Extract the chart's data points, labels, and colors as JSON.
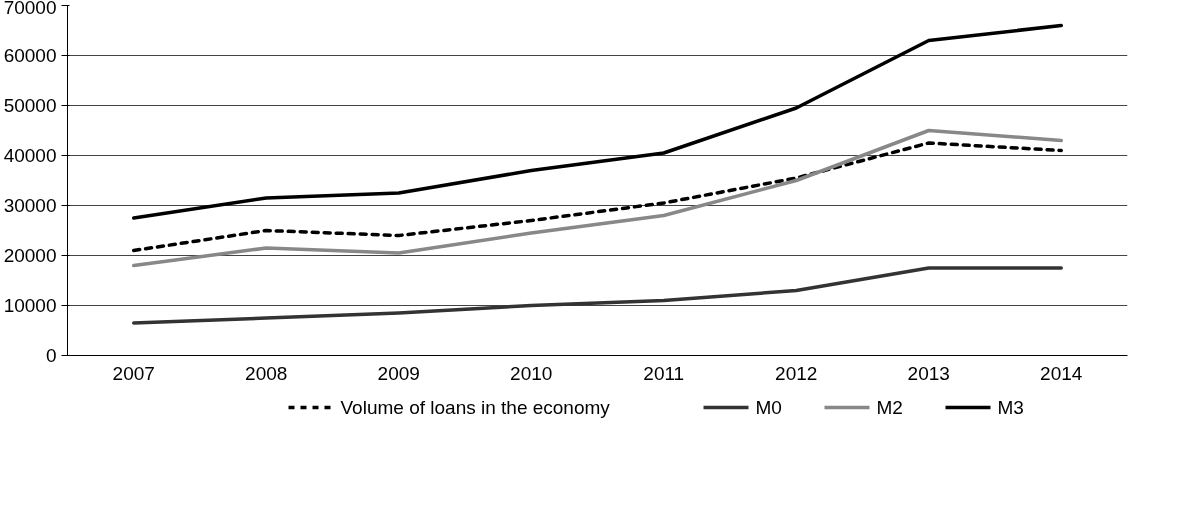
{
  "chart_data": {
    "type": "line",
    "categories": [
      "2007",
      "2008",
      "2009",
      "2010",
      "2011",
      "2012",
      "2013",
      "2014"
    ],
    "series": [
      {
        "name": "Volume of loans in the economy",
        "color": "#000000",
        "line_style": "dashed",
        "values": [
          21000,
          25000,
          24000,
          27000,
          30500,
          35500,
          42500,
          41000
        ]
      },
      {
        "name": "M0",
        "color": "#333333",
        "line_style": "solid",
        "values": [
          6500,
          7500,
          8500,
          10000,
          11000,
          13000,
          17500,
          17500
        ]
      },
      {
        "name": "M2",
        "color": "#888888",
        "line_style": "solid",
        "values": [
          18000,
          21500,
          20500,
          24500,
          28000,
          35000,
          45000,
          43000
        ]
      },
      {
        "name": "M3",
        "color": "#000000",
        "line_style": "solid",
        "values": [
          27500,
          31500,
          32500,
          37000,
          40500,
          49500,
          63000,
          66000
        ]
      }
    ],
    "ylim": [
      0,
      70000
    ],
    "yticks": [
      0,
      10000,
      20000,
      30000,
      40000,
      50000,
      60000,
      70000
    ],
    "grid": "y",
    "legend": "bottom",
    "marker": "none"
  }
}
